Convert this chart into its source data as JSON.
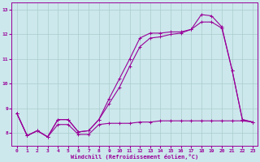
{
  "xlabel": "Windchill (Refroidissement éolien,°C)",
  "xlim": [
    -0.5,
    23.5
  ],
  "ylim": [
    7.5,
    13.3
  ],
  "xticks": [
    0,
    1,
    2,
    3,
    4,
    5,
    6,
    7,
    8,
    9,
    10,
    11,
    12,
    13,
    14,
    15,
    16,
    17,
    18,
    19,
    20,
    21,
    22,
    23
  ],
  "yticks": [
    8,
    9,
    10,
    11,
    12,
    13
  ],
  "bg_color": "#cce8ec",
  "line_color": "#990099",
  "grid_color": "#aacccc",
  "line1_x": [
    0,
    1,
    2,
    3,
    4,
    5,
    6,
    7,
    8,
    9,
    10,
    11,
    12,
    13,
    14,
    15,
    16,
    17,
    18,
    19,
    20,
    21,
    22,
    23
  ],
  "line1_y": [
    8.8,
    7.9,
    8.1,
    7.85,
    8.55,
    8.55,
    8.05,
    8.1,
    8.55,
    9.4,
    10.2,
    11.0,
    11.85,
    12.05,
    12.05,
    12.1,
    12.1,
    12.2,
    12.8,
    12.75,
    12.3,
    10.55,
    8.55,
    8.45
  ],
  "line2_x": [
    0,
    1,
    2,
    3,
    4,
    5,
    6,
    7,
    8,
    9,
    10,
    11,
    12,
    13,
    14,
    15,
    16,
    17,
    18,
    19,
    20,
    21,
    22,
    23
  ],
  "line2_y": [
    8.8,
    7.9,
    8.1,
    7.85,
    8.55,
    8.55,
    8.05,
    8.1,
    8.55,
    9.2,
    9.85,
    10.7,
    11.5,
    11.85,
    11.9,
    12.0,
    12.05,
    12.2,
    12.5,
    12.5,
    12.25,
    10.55,
    8.55,
    8.45
  ],
  "line3_x": [
    0,
    1,
    2,
    3,
    4,
    5,
    6,
    7,
    8,
    9,
    10,
    11,
    12,
    13,
    14,
    15,
    16,
    17,
    18,
    19,
    20,
    21,
    22,
    23
  ],
  "line3_y": [
    8.8,
    7.9,
    8.1,
    7.85,
    8.35,
    8.35,
    7.95,
    7.95,
    8.35,
    8.4,
    8.4,
    8.4,
    8.45,
    8.45,
    8.5,
    8.5,
    8.5,
    8.5,
    8.5,
    8.5,
    8.5,
    8.5,
    8.5,
    8.45
  ]
}
